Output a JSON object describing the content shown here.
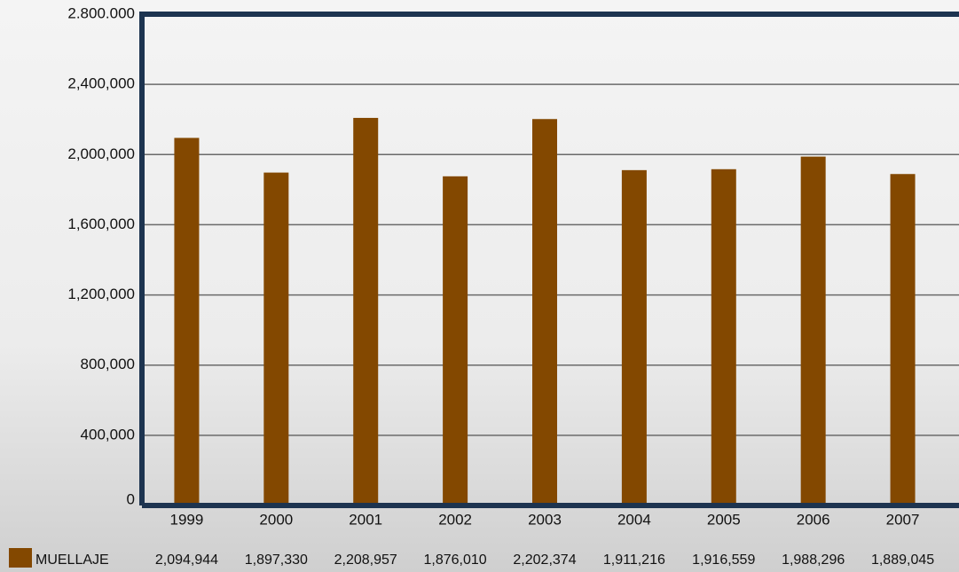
{
  "chart_data": {
    "type": "bar",
    "categories": [
      "1999",
      "2000",
      "2001",
      "2002",
      "2003",
      "2004",
      "2005",
      "2006",
      "2007"
    ],
    "series": [
      {
        "name": "MUELLAJE",
        "color": "#834800",
        "values": [
          2094944,
          1897330,
          2208957,
          1876010,
          2202374,
          1911216,
          1916559,
          1988296,
          1889045
        ],
        "value_labels": [
          "2,094,944",
          "1,897,330",
          "2,208,957",
          "1,876,010",
          "2,202,374",
          "1,911,216",
          "1,916,559",
          "1,988,296",
          "1,889,045"
        ]
      }
    ],
    "ylim": [
      0,
      2800000
    ],
    "yticks": [
      0,
      {
        "value": 400000,
        "label": "400,000"
      },
      {
        "value": 800000,
        "label": "800,000"
      },
      {
        "value": 1200000,
        "label": "1,200,000"
      },
      {
        "value": 1600000,
        "label": "1,600,000"
      },
      {
        "value": 2000000,
        "label": "2,000,000"
      },
      {
        "value": 2400000,
        "label": "2,400,000"
      },
      {
        "value": 2800000,
        "label": "2.800.000"
      }
    ],
    "grid": true
  }
}
